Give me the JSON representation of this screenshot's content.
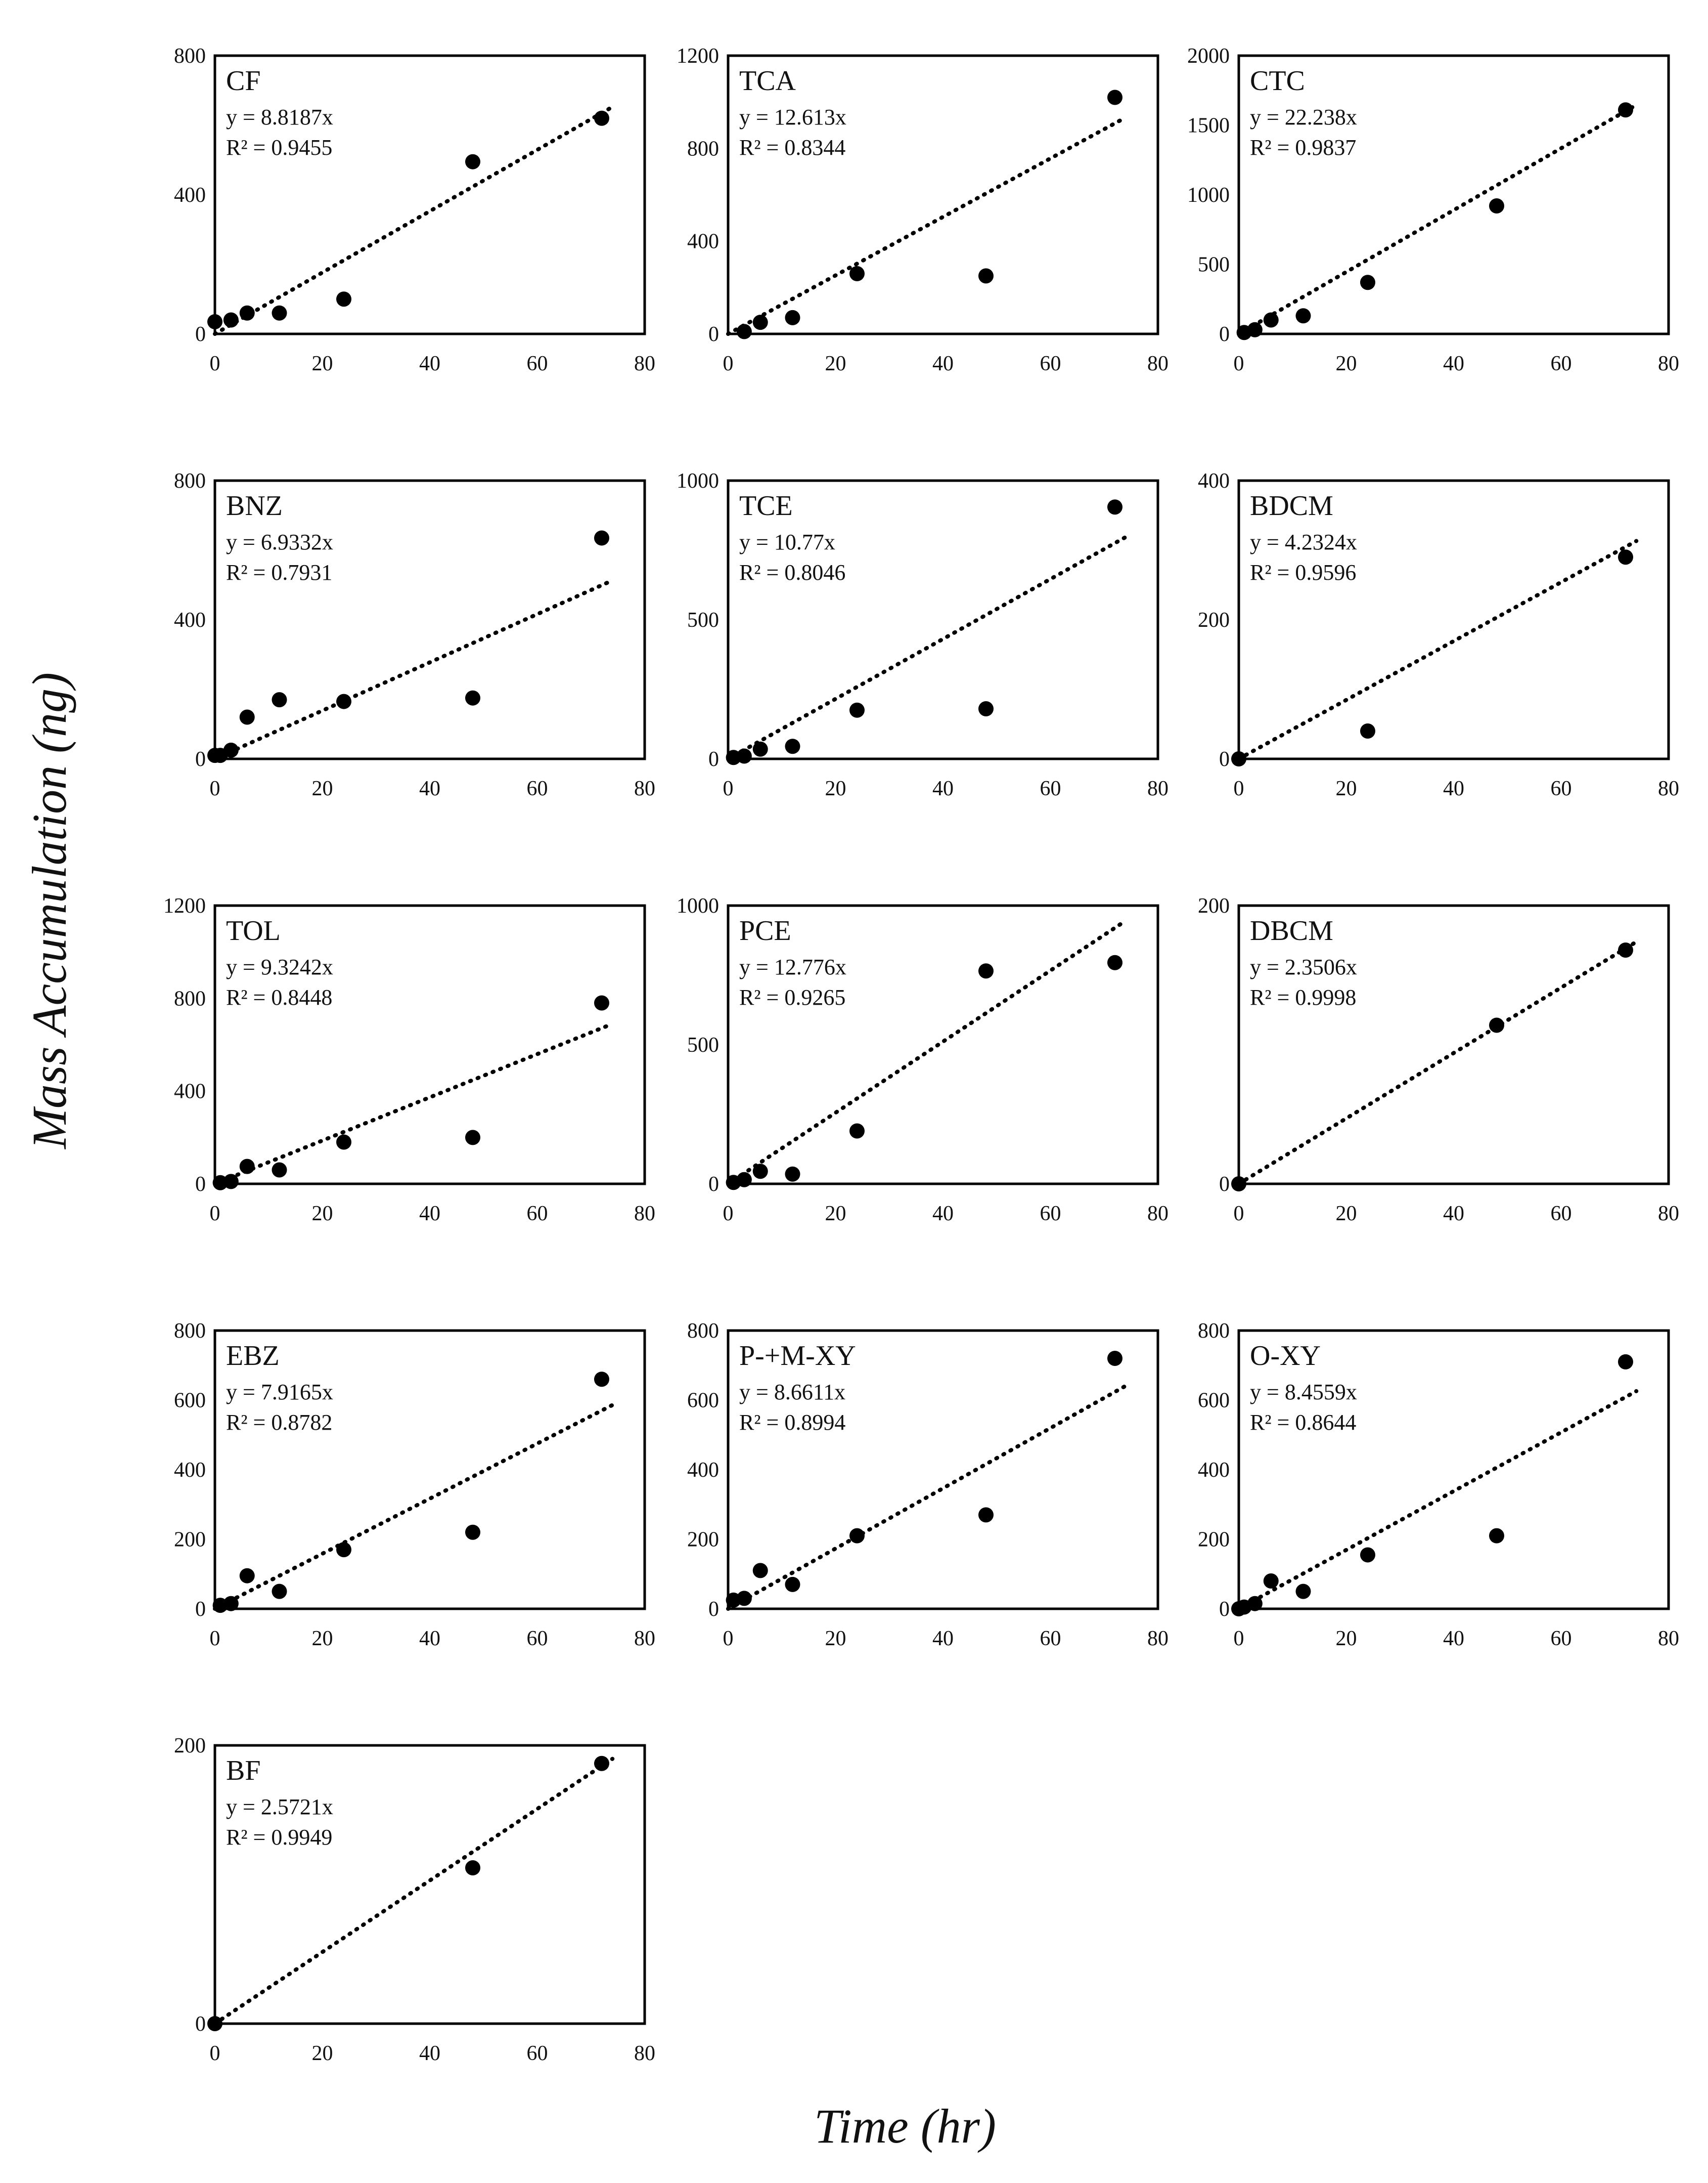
{
  "figure": {
    "y_axis_label": "Mass Accumulation (ng)",
    "x_axis_label": "Time (hr)"
  },
  "colors": {
    "marker": "#000000",
    "frame": "#000000",
    "trend": "#000000"
  },
  "chart_data": [
    {
      "type": "scatter",
      "title": "CF",
      "equation": "y = 8.8187x",
      "r2": "R² = 0.9455",
      "slope": 8.8187,
      "xlim": [
        0,
        80
      ],
      "ylim": [
        0,
        800
      ],
      "xticks": [
        0,
        20,
        40,
        60,
        80
      ],
      "yticks": [
        0,
        400,
        800
      ],
      "points": [
        [
          0,
          35
        ],
        [
          3,
          40
        ],
        [
          6,
          60
        ],
        [
          12,
          60
        ],
        [
          24,
          100
        ],
        [
          48,
          495
        ],
        [
          72,
          620
        ]
      ]
    },
    {
      "type": "scatter",
      "title": "TCA",
      "equation": "y = 12.613x",
      "r2": "R² = 0.8344",
      "slope": 12.613,
      "xlim": [
        0,
        80
      ],
      "ylim": [
        0,
        1200
      ],
      "xticks": [
        0,
        20,
        40,
        60,
        80
      ],
      "yticks": [
        0,
        400,
        800,
        1200
      ],
      "points": [
        [
          3,
          10
        ],
        [
          6,
          50
        ],
        [
          12,
          70
        ],
        [
          24,
          260
        ],
        [
          48,
          250
        ],
        [
          72,
          1020
        ]
      ]
    },
    {
      "type": "scatter",
      "title": "CTC",
      "equation": "y = 22.238x",
      "r2": "R² = 0.9837",
      "slope": 22.238,
      "xlim": [
        0,
        80
      ],
      "ylim": [
        0,
        2000
      ],
      "xticks": [
        0,
        20,
        40,
        60,
        80
      ],
      "yticks": [
        0,
        500,
        1000,
        1500,
        2000
      ],
      "points": [
        [
          1,
          10
        ],
        [
          3,
          30
        ],
        [
          6,
          100
        ],
        [
          12,
          130
        ],
        [
          24,
          370
        ],
        [
          48,
          920
        ],
        [
          72,
          1610
        ]
      ]
    },
    {
      "type": "scatter",
      "title": "BNZ",
      "equation": "y = 6.9332x",
      "r2": "R² = 0.7931",
      "slope": 6.9332,
      "xlim": [
        0,
        80
      ],
      "ylim": [
        0,
        800
      ],
      "xticks": [
        0,
        20,
        40,
        60,
        80
      ],
      "yticks": [
        0,
        400,
        800
      ],
      "points": [
        [
          0,
          10
        ],
        [
          1,
          10
        ],
        [
          3,
          25
        ],
        [
          6,
          120
        ],
        [
          12,
          170
        ],
        [
          24,
          165
        ],
        [
          48,
          175
        ],
        [
          72,
          635
        ]
      ]
    },
    {
      "type": "scatter",
      "title": "TCE",
      "equation": "y = 10.77x",
      "r2": "R² = 0.8046",
      "slope": 10.77,
      "xlim": [
        0,
        80
      ],
      "ylim": [
        0,
        1000
      ],
      "xticks": [
        0,
        20,
        40,
        60,
        80
      ],
      "yticks": [
        0,
        500,
        1000
      ],
      "points": [
        [
          1,
          5
        ],
        [
          3,
          10
        ],
        [
          6,
          35
        ],
        [
          12,
          45
        ],
        [
          24,
          175
        ],
        [
          48,
          180
        ],
        [
          72,
          905
        ]
      ]
    },
    {
      "type": "scatter",
      "title": "BDCM",
      "equation": "y = 4.2324x",
      "r2": "R² = 0.9596",
      "slope": 4.2324,
      "xlim": [
        0,
        80
      ],
      "ylim": [
        0,
        400
      ],
      "xticks": [
        0,
        20,
        40,
        60,
        80
      ],
      "yticks": [
        0,
        200,
        400
      ],
      "points": [
        [
          0,
          0
        ],
        [
          24,
          40
        ],
        [
          72,
          290
        ]
      ]
    },
    {
      "type": "scatter",
      "title": "TOL",
      "equation": "y = 9.3242x",
      "r2": "R² = 0.8448",
      "slope": 9.3242,
      "xlim": [
        0,
        80
      ],
      "ylim": [
        0,
        1200
      ],
      "xticks": [
        0,
        20,
        40,
        60,
        80
      ],
      "yticks": [
        0,
        400,
        800,
        1200
      ],
      "points": [
        [
          1,
          5
        ],
        [
          3,
          10
        ],
        [
          6,
          75
        ],
        [
          12,
          60
        ],
        [
          24,
          180
        ],
        [
          48,
          200
        ],
        [
          72,
          780
        ]
      ]
    },
    {
      "type": "scatter",
      "title": "PCE",
      "equation": "y = 12.776x",
      "r2": "R² = 0.9265",
      "slope": 12.776,
      "xlim": [
        0,
        80
      ],
      "ylim": [
        0,
        1000
      ],
      "xticks": [
        0,
        20,
        40,
        60,
        80
      ],
      "yticks": [
        0,
        500,
        1000
      ],
      "points": [
        [
          1,
          5
        ],
        [
          3,
          15
        ],
        [
          6,
          45
        ],
        [
          12,
          35
        ],
        [
          24,
          190
        ],
        [
          48,
          765
        ],
        [
          72,
          795
        ]
      ]
    },
    {
      "type": "scatter",
      "title": "DBCM",
      "equation": "y = 2.3506x",
      "r2": "R² = 0.9998",
      "slope": 2.3506,
      "xlim": [
        0,
        80
      ],
      "ylim": [
        0,
        200
      ],
      "xticks": [
        0,
        20,
        40,
        60,
        80
      ],
      "yticks": [
        0,
        200
      ],
      "points": [
        [
          0,
          0
        ],
        [
          48,
          114
        ],
        [
          72,
          168
        ]
      ]
    },
    {
      "type": "scatter",
      "title": "EBZ",
      "equation": "y = 7.9165x",
      "r2": "R² = 0.8782",
      "slope": 7.9165,
      "xlim": [
        0,
        80
      ],
      "ylim": [
        0,
        800
      ],
      "xticks": [
        0,
        20,
        40,
        60,
        80
      ],
      "yticks": [
        0,
        200,
        400,
        600,
        800
      ],
      "points": [
        [
          1,
          10
        ],
        [
          3,
          15
        ],
        [
          6,
          95
        ],
        [
          12,
          50
        ],
        [
          24,
          170
        ],
        [
          48,
          220
        ],
        [
          72,
          660
        ]
      ]
    },
    {
      "type": "scatter",
      "title": "P-+M-XY",
      "equation": "y = 8.6611x",
      "r2": "R² = 0.8994",
      "slope": 8.6611,
      "xlim": [
        0,
        80
      ],
      "ylim": [
        0,
        800
      ],
      "xticks": [
        0,
        20,
        40,
        60,
        80
      ],
      "yticks": [
        0,
        200,
        400,
        600,
        800
      ],
      "points": [
        [
          1,
          25
        ],
        [
          3,
          30
        ],
        [
          6,
          110
        ],
        [
          12,
          70
        ],
        [
          24,
          210
        ],
        [
          48,
          270
        ],
        [
          72,
          720
        ]
      ]
    },
    {
      "type": "scatter",
      "title": "O-XY",
      "equation": "y = 8.4559x",
      "r2": "R² = 0.8644",
      "slope": 8.4559,
      "xlim": [
        0,
        80
      ],
      "ylim": [
        0,
        800
      ],
      "xticks": [
        0,
        20,
        40,
        60,
        80
      ],
      "yticks": [
        0,
        200,
        400,
        600,
        800
      ],
      "points": [
        [
          0,
          0
        ],
        [
          1,
          5
        ],
        [
          3,
          15
        ],
        [
          6,
          80
        ],
        [
          12,
          50
        ],
        [
          24,
          155
        ],
        [
          48,
          210
        ],
        [
          72,
          710
        ]
      ]
    },
    {
      "type": "scatter",
      "title": "BF",
      "equation": "y = 2.5721x",
      "r2": "R² = 0.9949",
      "slope": 2.5721,
      "xlim": [
        0,
        80
      ],
      "ylim": [
        0,
        200
      ],
      "xticks": [
        0,
        20,
        40,
        60,
        80
      ],
      "yticks": [
        0,
        200
      ],
      "points": [
        [
          0,
          0
        ],
        [
          48,
          112
        ],
        [
          72,
          187
        ]
      ]
    }
  ]
}
